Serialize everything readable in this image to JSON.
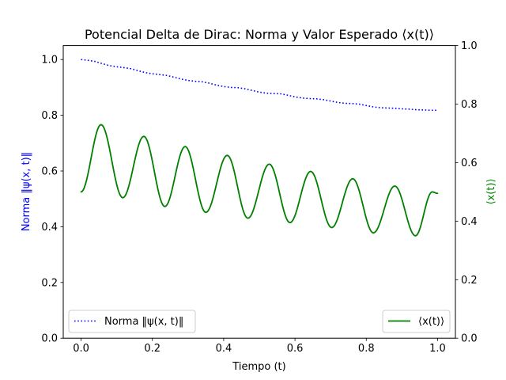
{
  "chart_data": {
    "type": "line",
    "title": "Potencial Delta de Dirac: Norma y Valor Esperado ⟨x(t)⟩",
    "xlabel": "Tiempo (t)",
    "ylabel_left": "Norma ‖ψ(x, t)‖",
    "ylabel_right": "⟨x(t)⟩",
    "xlim": [
      -0.05,
      1.05
    ],
    "ylim_left": [
      0.0,
      1.05
    ],
    "ylim_right": [
      0.0,
      1.0
    ],
    "x_ticks": [
      "0.0",
      "0.2",
      "0.4",
      "0.6",
      "0.8",
      "1.0"
    ],
    "y_left_ticks": [
      "0.0",
      "0.2",
      "0.4",
      "0.6",
      "0.8",
      "1.0"
    ],
    "y_right_ticks": [
      "0.0",
      "0.2",
      "0.4",
      "0.6",
      "0.8",
      "1.0"
    ],
    "grid": false,
    "left_axis_color": "#0000ff",
    "right_axis_color": "#008000",
    "series": [
      {
        "name": "Norma ‖ψ(x, t)‖",
        "axis": "left",
        "color": "#0000ff",
        "style": "dotted",
        "x": [
          0.0,
          0.02,
          0.04,
          0.06,
          0.08,
          0.1,
          0.12,
          0.14,
          0.16,
          0.18,
          0.2,
          0.22,
          0.24,
          0.26,
          0.28,
          0.3,
          0.32,
          0.34,
          0.36,
          0.38,
          0.4,
          0.42,
          0.44,
          0.46,
          0.48,
          0.5,
          0.52,
          0.54,
          0.56,
          0.58,
          0.6,
          0.62,
          0.64,
          0.66,
          0.68,
          0.7,
          0.72,
          0.74,
          0.76,
          0.78,
          0.8,
          0.82,
          0.84,
          0.86,
          0.88,
          0.9,
          0.92,
          0.94,
          0.96,
          0.98,
          1.0
        ],
        "y": [
          1.0,
          0.997,
          0.993,
          0.985,
          0.978,
          0.974,
          0.971,
          0.967,
          0.96,
          0.953,
          0.949,
          0.946,
          0.943,
          0.937,
          0.93,
          0.925,
          0.922,
          0.92,
          0.915,
          0.908,
          0.903,
          0.9,
          0.899,
          0.895,
          0.889,
          0.883,
          0.879,
          0.878,
          0.877,
          0.872,
          0.866,
          0.862,
          0.86,
          0.859,
          0.856,
          0.851,
          0.846,
          0.843,
          0.842,
          0.84,
          0.835,
          0.83,
          0.827,
          0.826,
          0.825,
          0.823,
          0.822,
          0.82,
          0.819,
          0.818,
          0.818
        ]
      },
      {
        "name": "⟨x(t)⟩",
        "axis": "right",
        "color": "#008000",
        "style": "solid",
        "peaks": [
          [
            0.0,
            0.5
          ],
          [
            0.056,
            0.73
          ],
          [
            0.117,
            0.48
          ],
          [
            0.176,
            0.69
          ],
          [
            0.235,
            0.45
          ],
          [
            0.292,
            0.655
          ],
          [
            0.35,
            0.43
          ],
          [
            0.41,
            0.625
          ],
          [
            0.468,
            0.41
          ],
          [
            0.528,
            0.595
          ],
          [
            0.586,
            0.395
          ],
          [
            0.644,
            0.57
          ],
          [
            0.703,
            0.378
          ],
          [
            0.762,
            0.545
          ],
          [
            0.82,
            0.36
          ],
          [
            0.88,
            0.52
          ],
          [
            0.938,
            0.35
          ],
          [
            0.985,
            0.5
          ],
          [
            1.0,
            0.495
          ]
        ]
      }
    ],
    "legends": [
      {
        "position": "lower left",
        "entries": [
          "Norma ‖ψ(x, t)‖"
        ]
      },
      {
        "position": "lower right",
        "entries": [
          "⟨x(t)⟩"
        ]
      }
    ]
  }
}
